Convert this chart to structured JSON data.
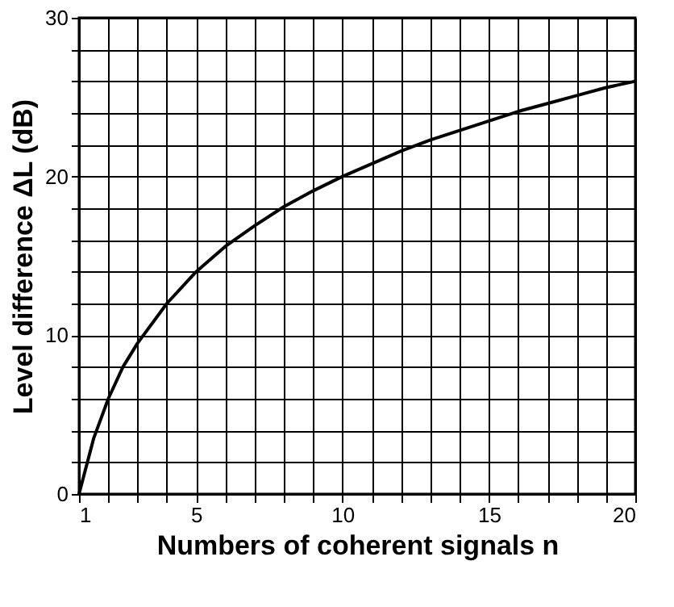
{
  "chart_data": {
    "type": "line",
    "xlabel": "Numbers of coherent signals n",
    "ylabel": "Level difference ΔL (dB)",
    "x": [
      1,
      1.5,
      2,
      2.5,
      3,
      4,
      5,
      6,
      7,
      8,
      9,
      10,
      11,
      12,
      13,
      14,
      15,
      16,
      17,
      18,
      19,
      20
    ],
    "series": [
      {
        "color": "#000000",
        "values": [
          0,
          3.5,
          6.0,
          8.0,
          9.5,
          12.0,
          14.0,
          15.6,
          16.9,
          18.1,
          19.1,
          20.0,
          20.8,
          21.6,
          22.3,
          22.9,
          23.5,
          24.1,
          24.6,
          25.1,
          25.6,
          26.0
        ]
      }
    ],
    "xlim": [
      1,
      20
    ],
    "ylim": [
      0,
      30
    ],
    "xticks": [
      1,
      {
        "value": 2,
        "label": null
      },
      {
        "value": 3,
        "label": null
      },
      {
        "value": 4,
        "label": null
      },
      5,
      {
        "value": 6,
        "label": null
      },
      {
        "value": 7,
        "label": null
      },
      {
        "value": 8,
        "label": null
      },
      {
        "value": 9,
        "label": null
      },
      10,
      {
        "value": 11,
        "label": null
      },
      {
        "value": 12,
        "label": null
      },
      {
        "value": 13,
        "label": null
      },
      {
        "value": 14,
        "label": null
      },
      15,
      {
        "value": 16,
        "label": null
      },
      {
        "value": 17,
        "label": null
      },
      {
        "value": 18,
        "label": null
      },
      {
        "value": 19,
        "label": null
      },
      20
    ],
    "yticks": [
      0,
      {
        "value": 2,
        "label": null
      },
      {
        "value": 4,
        "label": null
      },
      {
        "value": 6,
        "label": null
      },
      {
        "value": 8,
        "label": null
      },
      10,
      {
        "value": 12,
        "label": null
      },
      {
        "value": 14,
        "label": null
      },
      {
        "value": 16,
        "label": null
      },
      {
        "value": 18,
        "label": null
      },
      20,
      {
        "value": 22,
        "label": null
      },
      {
        "value": 24,
        "label": null
      },
      {
        "value": 26,
        "label": null
      },
      {
        "value": 28,
        "label": null
      },
      30
    ],
    "grid": true,
    "marker": "none",
    "line_style": "solid"
  }
}
